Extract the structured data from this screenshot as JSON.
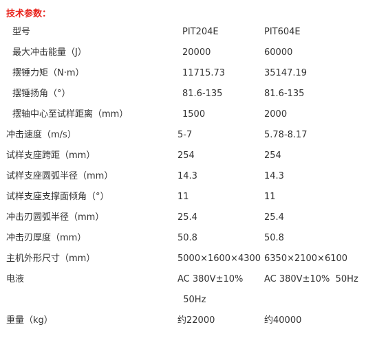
{
  "heading": "技术参数：",
  "table": {
    "rows": [
      {
        "label": "型号",
        "v1": "PIT204E",
        "v2": "PIT604E",
        "indent": true
      },
      {
        "label": "最大冲击能量（J）",
        "v1": "20000",
        "v2": "60000",
        "indent": true
      },
      {
        "label": "摆锤力矩（N·m）",
        "v1": "11715.73",
        "v2": "35147.19",
        "indent": true
      },
      {
        "label": "摆锤扬角（°）",
        "v1": "81.6-135",
        "v2": "81.6-135",
        "indent": true
      },
      {
        "label": "摆轴中心至试样距离（mm）",
        "v1": "1500",
        "v2": "2000",
        "indent": true
      },
      {
        "label": "冲击速度（m/s）",
        "v1": "5-7",
        "v2": "5.78-8.17",
        "indent": false
      },
      {
        "label": "试样支座跨距（mm）",
        "v1": "254",
        "v2": "254",
        "indent": false
      },
      {
        "label": "试样支座圆弧半径（mm）",
        "v1": "14.3",
        "v2": "14.3",
        "indent": false
      },
      {
        "label": "试样支座支撑面倾角（°）",
        "v1": "11",
        "v2": "11",
        "indent": false
      },
      {
        "label": "冲击刃圆弧半径（mm）",
        "v1": "25.4",
        "v2": "25.4",
        "indent": false
      },
      {
        "label": "冲击刃厚度（mm）",
        "v1": "50.8",
        "v2": "50.8",
        "indent": false
      },
      {
        "label": "主机外形尺寸（mm）",
        "v1": "5000×1600×4300",
        "v2": "6350×2100×6100",
        "indent": false
      },
      {
        "label": "电液",
        "v1": "AC 380V±10%",
        "v2": "AC 380V±10%  50Hz",
        "indent": false
      },
      {
        "label": "",
        "v1": "  50Hz",
        "v2": "",
        "indent": false
      },
      {
        "label": "重量（kg）",
        "v1": "约22000",
        "v2": "约40000",
        "indent": false
      }
    ]
  }
}
